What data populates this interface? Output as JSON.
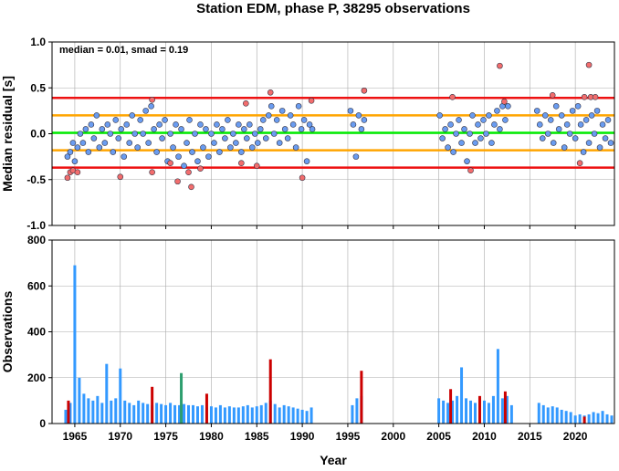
{
  "chart_data": [
    {
      "type": "scatter",
      "title": "Station EDM, phase P, 38295 observations",
      "ylabel": "Median residual [s]",
      "annotation": "median = 0.01, smad = 0.19",
      "xlim": [
        1962.5,
        2024.3
      ],
      "xticks": [
        1965,
        1970,
        1975,
        1980,
        1985,
        1990,
        1995,
        2000,
        2005,
        2010,
        2015,
        2020
      ],
      "xtick_labels": false,
      "ylim": [
        -1,
        1
      ],
      "yticks": [
        {
          "value": -1,
          "label": "-1.0"
        },
        {
          "value": -0.5,
          "label": "-0.5"
        },
        {
          "value": 0,
          "label": "0.0"
        },
        {
          "value": 0.5,
          "label": "0.5"
        },
        {
          "value": 1,
          "label": "1.0"
        }
      ],
      "grid": true,
      "hlines": [
        {
          "value": 0.39,
          "color": "#ee1111"
        },
        {
          "value": 0.2,
          "color": "#ffa500"
        },
        {
          "value": 0.01,
          "color": "#00ee00"
        },
        {
          "value": -0.18,
          "color": "#ffa500"
        },
        {
          "value": -0.37,
          "color": "#ee1111"
        }
      ],
      "series": [
        {
          "color": "#6a9cf0",
          "x": [
            1964.2,
            1964.5,
            1964.8,
            1965.0,
            1965.3,
            1965.6,
            1965.9,
            1966.2,
            1966.5,
            1966.8,
            1967.1,
            1967.4,
            1967.7,
            1968.0,
            1968.3,
            1968.6,
            1968.9,
            1969.2,
            1969.5,
            1969.8,
            1970.1,
            1970.4,
            1970.7,
            1971.0,
            1971.3,
            1971.6,
            1971.9,
            1972.2,
            1972.5,
            1972.8,
            1973.1,
            1973.4,
            1973.7,
            1974.0,
            1974.3,
            1974.6,
            1974.9,
            1975.2,
            1975.5,
            1975.8,
            1976.1,
            1976.4,
            1976.7,
            1977.0,
            1977.3,
            1977.6,
            1977.9,
            1978.2,
            1978.5,
            1978.8,
            1979.1,
            1979.4,
            1979.7,
            1980.0,
            1980.3,
            1980.6,
            1980.9,
            1981.2,
            1981.5,
            1981.8,
            1982.1,
            1982.4,
            1982.7,
            1983.0,
            1983.3,
            1983.6,
            1983.9,
            1984.2,
            1984.5,
            1984.8,
            1985.1,
            1985.4,
            1985.7,
            1986.0,
            1986.3,
            1986.6,
            1986.9,
            1987.2,
            1987.5,
            1987.8,
            1988.1,
            1988.4,
            1988.7,
            1989.0,
            1989.3,
            1989.6,
            1989.9,
            1990.2,
            1990.5,
            1990.8,
            1991.1,
            1995.3,
            1995.6,
            1995.9,
            1996.2,
            1996.5,
            1996.8,
            2005.1,
            2005.4,
            2005.7,
            2006.0,
            2006.3,
            2006.6,
            2006.9,
            2007.2,
            2007.5,
            2007.8,
            2008.1,
            2008.4,
            2008.7,
            2009.0,
            2009.3,
            2009.6,
            2009.9,
            2010.2,
            2010.5,
            2010.8,
            2011.1,
            2011.4,
            2011.7,
            2012.0,
            2012.3,
            2012.6,
            2015.8,
            2016.1,
            2016.4,
            2016.7,
            2017.0,
            2017.3,
            2017.6,
            2017.9,
            2018.2,
            2018.5,
            2018.8,
            2019.1,
            2019.4,
            2019.7,
            2020.0,
            2020.3,
            2020.6,
            2020.9,
            2021.2,
            2021.5,
            2021.8,
            2022.1,
            2022.4,
            2022.7,
            2023.0,
            2023.3,
            2023.6,
            2023.9
          ],
          "values": [
            -0.25,
            -0.2,
            -0.1,
            -0.3,
            -0.15,
            0.0,
            -0.1,
            0.05,
            -0.2,
            0.1,
            -0.05,
            0.2,
            -0.15,
            0.05,
            -0.1,
            0.1,
            0.0,
            -0.2,
            0.15,
            -0.05,
            0.05,
            -0.25,
            0.1,
            -0.1,
            0.2,
            0.0,
            -0.15,
            0.15,
            0.0,
            0.25,
            -0.1,
            0.3,
            0.05,
            -0.2,
            0.1,
            -0.05,
            0.15,
            -0.3,
            0.0,
            -0.15,
            0.1,
            -0.25,
            0.05,
            -0.35,
            -0.1,
            0.15,
            -0.2,
            0.0,
            -0.3,
            0.1,
            -0.15,
            0.05,
            -0.25,
            0.0,
            -0.1,
            0.1,
            -0.2,
            0.05,
            -0.05,
            0.15,
            -0.15,
            0.0,
            -0.1,
            0.1,
            -0.2,
            0.05,
            -0.05,
            0.1,
            -0.15,
            0.0,
            -0.1,
            0.05,
            0.15,
            -0.05,
            0.2,
            0.3,
            0.0,
            0.15,
            -0.1,
            0.25,
            0.05,
            -0.05,
            0.2,
            0.1,
            -0.15,
            0.3,
            0.05,
            0.15,
            -0.3,
            0.1,
            0.05,
            0.25,
            0.1,
            -0.25,
            0.2,
            0.05,
            0.15,
            0.2,
            -0.05,
            0.05,
            -0.15,
            0.1,
            -0.2,
            0.0,
            0.15,
            -0.1,
            0.05,
            -0.3,
            0.0,
            0.2,
            -0.1,
            0.1,
            -0.05,
            0.15,
            0.0,
            0.2,
            -0.1,
            0.1,
            0.25,
            0.05,
            0.3,
            0.15,
            0.3,
            0.25,
            0.1,
            -0.05,
            0.2,
            0.0,
            0.15,
            -0.1,
            0.3,
            0.05,
            0.2,
            -0.15,
            0.1,
            0.0,
            0.25,
            -0.05,
            0.3,
            0.1,
            -0.2,
            0.15,
            -0.1,
            0.2,
            0.0,
            0.25,
            -0.15,
            0.1,
            -0.05,
            0.15,
            -0.1
          ]
        },
        {
          "color": "#f26d6d",
          "x": [
            1964.2,
            1964.5,
            1964.8,
            1965.3,
            1970.0,
            1973.5,
            1973.5,
            1975.5,
            1976.3,
            1977.8,
            1977.5,
            1978.8,
            1983.3,
            1983.8,
            1985.0,
            1986.5,
            1990.0,
            1991.0,
            1996.8,
            2006.5,
            2008.5,
            2011.7,
            2012.2,
            2017.5,
            2020.5,
            2021.0,
            2021.5,
            2021.7,
            2022.2
          ],
          "values": [
            -0.48,
            -0.42,
            -0.4,
            -0.42,
            -0.47,
            0.37,
            -0.42,
            -0.32,
            -0.52,
            -0.58,
            -0.42,
            -0.38,
            -0.32,
            0.33,
            -0.35,
            0.45,
            -0.48,
            0.36,
            0.47,
            0.4,
            -0.4,
            0.74,
            0.35,
            0.42,
            -0.32,
            0.4,
            0.75,
            0.4,
            0.4
          ]
        }
      ]
    },
    {
      "type": "bar",
      "xlabel": "Year",
      "ylabel": "Observations",
      "xlim": [
        1962.5,
        2024.3
      ],
      "xticks": [
        1965,
        1970,
        1975,
        1980,
        1985,
        1990,
        1995,
        2000,
        2005,
        2010,
        2015,
        2020
      ],
      "xtick_labels": true,
      "ylim": [
        0,
        800
      ],
      "yticks": [
        0,
        200,
        400,
        600,
        800
      ],
      "grid": true,
      "series": [
        {
          "color": "#3399ff",
          "x": [
            1964.0,
            1964.5,
            1965.0,
            1965.5,
            1966.0,
            1966.5,
            1967.0,
            1967.5,
            1968.0,
            1968.5,
            1969.0,
            1969.5,
            1970.0,
            1970.5,
            1971.0,
            1971.5,
            1972.0,
            1972.5,
            1973.0,
            1973.5,
            1974.0,
            1974.5,
            1975.0,
            1975.5,
            1976.0,
            1976.5,
            1977.0,
            1977.5,
            1978.0,
            1978.5,
            1979.0,
            1979.5,
            1980.0,
            1980.5,
            1981.0,
            1981.5,
            1982.0,
            1982.5,
            1983.0,
            1983.5,
            1984.0,
            1984.5,
            1985.0,
            1985.5,
            1986.0,
            1986.5,
            1987.0,
            1987.5,
            1988.0,
            1988.5,
            1989.0,
            1989.5,
            1990.0,
            1990.5,
            1991.0,
            1995.5,
            1996.0,
            1996.5,
            2005.0,
            2005.5,
            2006.0,
            2006.5,
            2007.0,
            2007.5,
            2008.0,
            2008.5,
            2009.0,
            2009.5,
            2010.0,
            2010.5,
            2011.0,
            2011.5,
            2012.0,
            2012.5,
            2013.0,
            2016.0,
            2016.5,
            2017.0,
            2017.5,
            2018.0,
            2018.5,
            2019.0,
            2019.5,
            2020.0,
            2020.5,
            2021.0,
            2021.5,
            2022.0,
            2022.5,
            2023.0,
            2023.5,
            2024.0
          ],
          "values": [
            60,
            90,
            690,
            200,
            130,
            110,
            100,
            120,
            90,
            260,
            100,
            110,
            240,
            100,
            90,
            80,
            100,
            90,
            85,
            80,
            90,
            85,
            80,
            90,
            80,
            80,
            85,
            80,
            80,
            75,
            80,
            70,
            75,
            70,
            80,
            70,
            75,
            70,
            70,
            75,
            80,
            70,
            75,
            80,
            90,
            100,
            85,
            70,
            80,
            75,
            70,
            65,
            60,
            55,
            70,
            80,
            110,
            120,
            110,
            100,
            90,
            100,
            120,
            245,
            110,
            100,
            90,
            110,
            100,
            90,
            120,
            325,
            110,
            120,
            80,
            90,
            80,
            70,
            75,
            70,
            60,
            55,
            50,
            35,
            40,
            35,
            40,
            50,
            45,
            55,
            40,
            35
          ]
        },
        {
          "color": "#cc0000",
          "x": [
            1964.3,
            1973.5,
            1979.5,
            1986.5,
            1996.5,
            2006.3,
            2009.5,
            2012.3,
            2021.0
          ],
          "values": [
            100,
            160,
            130,
            280,
            230,
            150,
            120,
            140,
            30
          ]
        },
        {
          "color": "#2e9e6e",
          "x": [
            1976.7
          ],
          "values": [
            220
          ]
        }
      ]
    }
  ]
}
